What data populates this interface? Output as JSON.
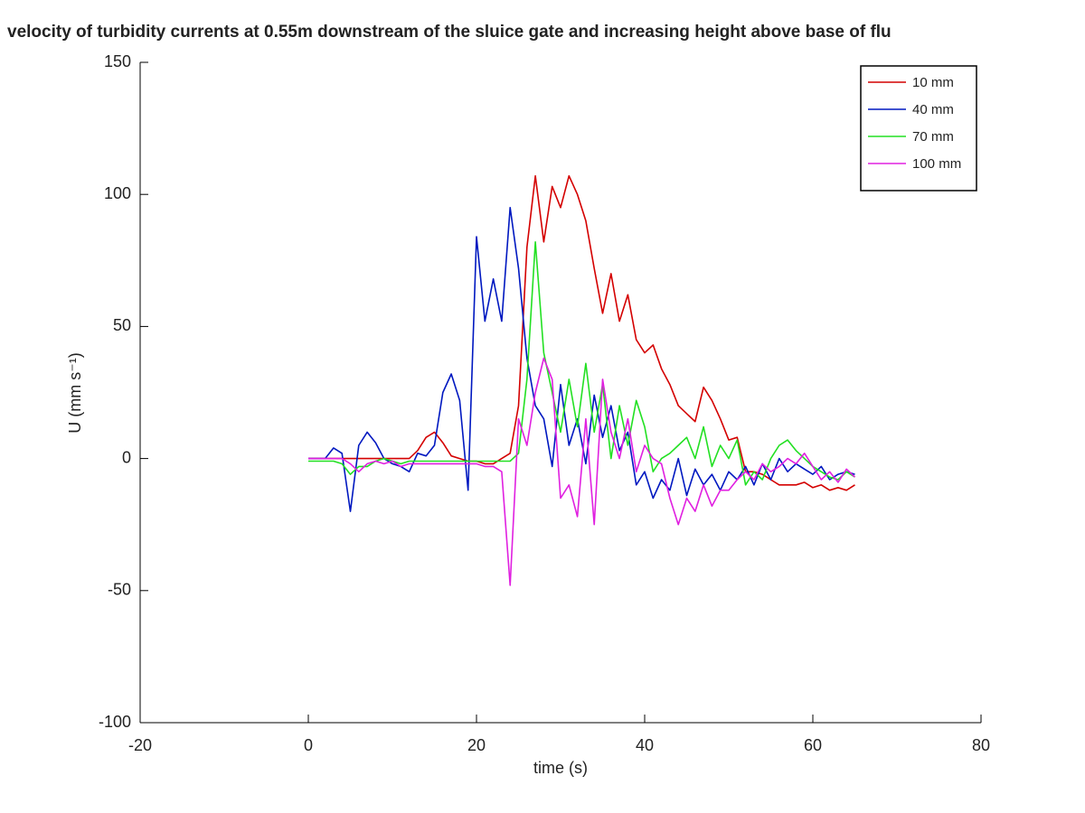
{
  "chart_data": {
    "type": "line",
    "title": "velocity of turbidity currents at 0.55m downstream of the sluice gate and increasing height above base of flu",
    "x_label": "time (s)",
    "y_label": "U (mm s⁻¹)",
    "xlim": [
      -20,
      80
    ],
    "xticks": [
      -20,
      0,
      20,
      40,
      60,
      80
    ],
    "ylim": [
      -100,
      150
    ],
    "yticks": [
      -100,
      -50,
      0,
      50,
      100,
      150
    ],
    "legend": "top-right",
    "x": [
      0,
      1,
      2,
      3,
      4,
      5,
      6,
      7,
      8,
      9,
      10,
      11,
      12,
      13,
      14,
      15,
      16,
      17,
      18,
      19,
      20,
      21,
      22,
      23,
      24,
      25,
      26,
      27,
      28,
      29,
      30,
      31,
      32,
      33,
      34,
      35,
      36,
      37,
      38,
      39,
      40,
      41,
      42,
      43,
      44,
      45,
      46,
      47,
      48,
      49,
      50,
      51,
      52,
      53,
      54,
      55,
      56,
      57,
      58,
      59,
      60,
      61,
      62,
      63,
      64,
      65
    ],
    "series": [
      {
        "name": "10 mm",
        "color": "#d40000",
        "values": [
          0,
          0,
          0,
          0,
          0,
          0,
          0,
          0,
          0,
          0,
          0,
          0,
          0,
          3,
          8,
          10,
          6,
          1,
          0,
          -1,
          -1,
          -2,
          -2,
          0,
          2,
          20,
          80,
          107,
          82,
          103,
          95,
          107,
          100,
          90,
          72,
          55,
          70,
          52,
          62,
          45,
          40,
          43,
          34,
          28,
          20,
          17,
          14,
          27,
          22,
          15,
          7,
          8,
          -5,
          -5,
          -6,
          -8,
          -10,
          -10,
          -10,
          -9,
          -11,
          -10,
          -12,
          -11,
          -12,
          -10
        ]
      },
      {
        "name": "40 mm",
        "color": "#0018c0",
        "values": [
          0,
          0,
          0,
          4,
          2,
          -20,
          5,
          10,
          6,
          0,
          -2,
          -3,
          -5,
          2,
          1,
          5,
          25,
          32,
          22,
          -12,
          84,
          52,
          68,
          52,
          95,
          72,
          38,
          20,
          15,
          -3,
          28,
          5,
          15,
          -2,
          24,
          8,
          20,
          3,
          10,
          -10,
          -5,
          -15,
          -8,
          -12,
          0,
          -14,
          -4,
          -10,
          -6,
          -12,
          -5,
          -8,
          -3,
          -10,
          -2,
          -8,
          0,
          -5,
          -2,
          -4,
          -6,
          -3,
          -8,
          -6,
          -5,
          -6
        ]
      },
      {
        "name": "70 mm",
        "color": "#22e022",
        "values": [
          -1,
          -1,
          -1,
          -1,
          -2,
          -6,
          -3,
          -3,
          -1,
          0,
          -1,
          -2,
          -1,
          -1,
          -1,
          -1,
          -1,
          -1,
          -1,
          -1,
          -1,
          -1,
          -1,
          -1,
          -1,
          2,
          30,
          82,
          40,
          25,
          10,
          30,
          12,
          36,
          10,
          28,
          0,
          20,
          5,
          22,
          12,
          -5,
          0,
          2,
          5,
          8,
          0,
          12,
          -3,
          5,
          0,
          7,
          -10,
          -5,
          -8,
          0,
          5,
          7,
          3,
          0,
          -3,
          -5,
          -7,
          -8,
          -5,
          -7
        ]
      },
      {
        "name": "100 mm",
        "color": "#e020e0",
        "values": [
          0,
          0,
          0,
          0,
          0,
          -2,
          -5,
          -2,
          -1,
          -2,
          -1,
          -3,
          -2,
          -2,
          -2,
          -2,
          -2,
          -2,
          -2,
          -2,
          -2,
          -3,
          -3,
          -5,
          -48,
          15,
          5,
          25,
          38,
          30,
          -15,
          -10,
          -22,
          15,
          -25,
          30,
          10,
          0,
          15,
          -5,
          5,
          0,
          -2,
          -15,
          -25,
          -15,
          -20,
          -10,
          -18,
          -12,
          -12,
          -8,
          -5,
          -8,
          -2,
          -5,
          -3,
          0,
          -2,
          2,
          -3,
          -8,
          -5,
          -9,
          -4,
          -7
        ]
      }
    ]
  }
}
